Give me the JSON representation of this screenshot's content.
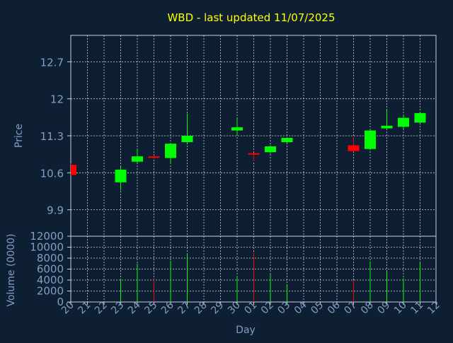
{
  "chart_data": {
    "type": "candlestick",
    "title": "WBD - last updated 11/07/2025",
    "xlabel": "Day",
    "colors": {
      "background": "#0f1f33",
      "title": "#ffff00",
      "axis_text": "#7f9ec4",
      "axis_line": "#c8d2dc",
      "grid": "#c8d2dc",
      "up": "#00ff00",
      "down": "#ff0000"
    },
    "grid": true,
    "x_ticks": [
      "20",
      "21",
      "22",
      "23",
      "24",
      "25",
      "26",
      "27",
      "28",
      "29",
      "30",
      "01",
      "02",
      "03",
      "04",
      "05",
      "06",
      "07",
      "08",
      "09",
      "10",
      "11",
      "12"
    ],
    "price_panel": {
      "ylabel": "Price",
      "ylim": [
        9.4,
        13.2
      ],
      "y_ticks": [
        9.9,
        10.6,
        11.3,
        12,
        12.7
      ],
      "y_tick_labels": [
        "9.9",
        "10.6",
        "11.3",
        "12",
        "12.7"
      ]
    },
    "volume_panel": {
      "ylabel": "Volume (0000)",
      "ylim": [
        0,
        12000
      ],
      "y_ticks": [
        0,
        2000,
        4000,
        6000,
        8000,
        10000,
        12000
      ],
      "y_tick_labels": [
        "0",
        "2000",
        "4000",
        "6000",
        "8000",
        "10000",
        "12000"
      ]
    },
    "candles": [
      {
        "day": "20",
        "open": 10.75,
        "high": 10.78,
        "low": 10.55,
        "close": 10.56,
        "volume": 0
      },
      {
        "day": "23",
        "open": 10.42,
        "high": 10.72,
        "low": 10.27,
        "close": 10.66,
        "volume": 4200
      },
      {
        "day": "24",
        "open": 10.81,
        "high": 11.06,
        "low": 10.79,
        "close": 10.91,
        "volume": 7000
      },
      {
        "day": "25",
        "open": 10.91,
        "high": 10.93,
        "low": 10.87,
        "close": 10.89,
        "volume": 4200
      },
      {
        "day": "26",
        "open": 10.88,
        "high": 11.16,
        "low": 10.78,
        "close": 11.15,
        "volume": 7500
      },
      {
        "day": "27",
        "open": 11.18,
        "high": 11.72,
        "low": 11.17,
        "close": 11.3,
        "volume": 8800
      },
      {
        "day": "30",
        "open": 11.4,
        "high": 11.62,
        "low": 11.31,
        "close": 11.46,
        "volume": 4700
      },
      {
        "day": "01",
        "open": 10.97,
        "high": 10.98,
        "low": 10.82,
        "close": 10.96,
        "volume": 9000
      },
      {
        "day": "02",
        "open": 10.99,
        "high": 11.12,
        "low": 10.96,
        "close": 11.1,
        "volume": 5000
      },
      {
        "day": "03",
        "open": 11.18,
        "high": 11.27,
        "low": 11.16,
        "close": 11.26,
        "volume": 3100
      },
      {
        "day": "07",
        "open": 11.12,
        "high": 11.28,
        "low": 11.0,
        "close": 11.01,
        "volume": 4000
      },
      {
        "day": "08",
        "open": 11.05,
        "high": 11.41,
        "low": 11.03,
        "close": 11.4,
        "volume": 7400
      },
      {
        "day": "09",
        "open": 11.44,
        "high": 11.78,
        "low": 11.42,
        "close": 11.49,
        "volume": 5600
      },
      {
        "day": "10",
        "open": 11.47,
        "high": 11.7,
        "low": 11.43,
        "close": 11.64,
        "volume": 4300
      },
      {
        "day": "11",
        "open": 11.55,
        "high": 11.75,
        "low": 11.52,
        "close": 11.73,
        "volume": 7100
      }
    ]
  }
}
